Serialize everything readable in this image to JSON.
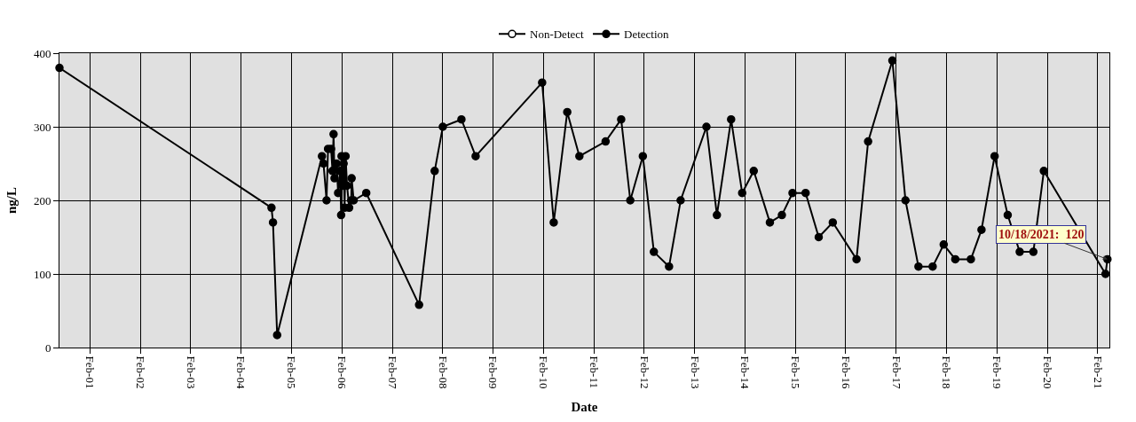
{
  "chart_data": {
    "type": "line",
    "xlabel": "Date",
    "ylabel": "ng/L",
    "x": [
      "2000-06-24",
      "2004-09-08",
      "2004-09-19",
      "2004-10-19",
      "2005-09-09",
      "2005-09-20",
      "2005-10-12",
      "2005-10-23",
      "2005-11-14",
      "2005-11-24",
      "2005-12-02",
      "2005-12-09",
      "2005-12-24",
      "2006-01-04",
      "2006-01-18",
      "2006-01-26",
      "2006-01-29",
      "2006-02-06",
      "2006-02-13",
      "2006-02-20",
      "2006-02-27",
      "2006-03-10",
      "2006-03-25",
      "2006-04-09",
      "2006-04-12",
      "2006-04-27",
      "2006-07-27",
      "2007-08-14",
      "2007-12-05",
      "2008-02-02",
      "2008-06-16",
      "2008-09-27",
      "2010-01-22",
      "2010-04-16",
      "2010-07-23",
      "2010-10-19",
      "2011-04-27",
      "2011-08-18",
      "2011-10-23",
      "2012-01-22",
      "2012-04-11",
      "2012-07-30",
      "2012-10-22",
      "2013-04-27",
      "2013-07-12",
      "2013-10-23",
      "2014-01-11",
      "2014-04-05",
      "2014-07-31",
      "2014-10-26",
      "2015-01-11",
      "2015-04-16",
      "2015-07-20",
      "2015-10-30",
      "2016-04-19",
      "2016-07-12",
      "2017-01-04",
      "2017-04-09",
      "2017-07-12",
      "2017-10-23",
      "2018-01-11",
      "2018-04-05",
      "2018-07-27",
      "2018-10-12",
      "2019-01-15",
      "2019-04-20",
      "2019-07-16",
      "2019-10-23",
      "2020-01-07",
      "2021-03-29",
      "2021-04-12"
    ],
    "series": [
      {
        "name": "Non-Detect",
        "color": "#000000",
        "values": [
          null,
          null,
          null,
          null,
          null,
          null,
          null,
          null,
          null,
          null,
          null,
          null,
          null,
          null,
          null,
          null,
          null,
          null,
          null,
          null,
          null,
          null,
          null,
          null,
          null,
          null,
          null,
          null,
          null,
          null,
          null,
          null,
          null,
          null,
          null,
          null,
          null,
          null,
          null,
          null,
          null,
          null,
          null,
          null,
          null,
          null,
          null,
          null,
          null,
          null,
          null,
          null,
          null,
          null,
          null,
          null,
          null,
          null,
          null,
          null,
          null,
          null,
          null,
          null,
          null,
          null,
          null,
          null,
          null,
          null,
          null
        ]
      },
      {
        "name": "Detection",
        "color": "#000000",
        "values": [
          380,
          190,
          170,
          17,
          260,
          250,
          200,
          270,
          270,
          240,
          290,
          230,
          250,
          210,
          240,
          180,
          260,
          220,
          250,
          190,
          260,
          220,
          190,
          200,
          230,
          200,
          210,
          58,
          240,
          300,
          310,
          260,
          360,
          170,
          320,
          260,
          280,
          310,
          200,
          260,
          130,
          110,
          200,
          300,
          180,
          310,
          210,
          240,
          170,
          180,
          210,
          210,
          150,
          170,
          120,
          280,
          390,
          200,
          110,
          110,
          140,
          120,
          120,
          160,
          260,
          180,
          130,
          130,
          240,
          100,
          120
        ]
      }
    ],
    "xlim": [
      "2000-06-24",
      "2021-04-26"
    ],
    "xticks": [
      {
        "value": "2001-02-01",
        "label": "Feb-01"
      },
      {
        "value": "2002-02-01",
        "label": "Feb-02"
      },
      {
        "value": "2003-02-01",
        "label": "Feb-03"
      },
      {
        "value": "2004-02-01",
        "label": "Feb-04"
      },
      {
        "value": "2005-02-01",
        "label": "Feb-05"
      },
      {
        "value": "2006-02-01",
        "label": "Feb-06"
      },
      {
        "value": "2007-02-01",
        "label": "Feb-07"
      },
      {
        "value": "2008-02-01",
        "label": "Feb-08"
      },
      {
        "value": "2009-02-01",
        "label": "Feb-09"
      },
      {
        "value": "2010-02-01",
        "label": "Feb-10"
      },
      {
        "value": "2011-02-01",
        "label": "Feb-11"
      },
      {
        "value": "2012-02-01",
        "label": "Feb-12"
      },
      {
        "value": "2013-02-01",
        "label": "Feb-13"
      },
      {
        "value": "2014-02-01",
        "label": "Feb-14"
      },
      {
        "value": "2015-02-01",
        "label": "Feb-15"
      },
      {
        "value": "2016-02-01",
        "label": "Feb-16"
      },
      {
        "value": "2017-02-01",
        "label": "Feb-17"
      },
      {
        "value": "2018-02-01",
        "label": "Feb-18"
      },
      {
        "value": "2019-02-01",
        "label": "Feb-19"
      },
      {
        "value": "2020-02-01",
        "label": "Feb-20"
      },
      {
        "value": "2021-02-01",
        "label": "Feb-21"
      }
    ],
    "ylim": [
      0,
      400
    ],
    "yticks": [
      0,
      100,
      200,
      300,
      400
    ],
    "grid": true,
    "legend": "top",
    "marker": "circle",
    "line_style": "solid",
    "annotations": [
      {
        "text": "10/18/2021:  120",
        "x": "2021-04-12",
        "y": 120
      }
    ]
  }
}
